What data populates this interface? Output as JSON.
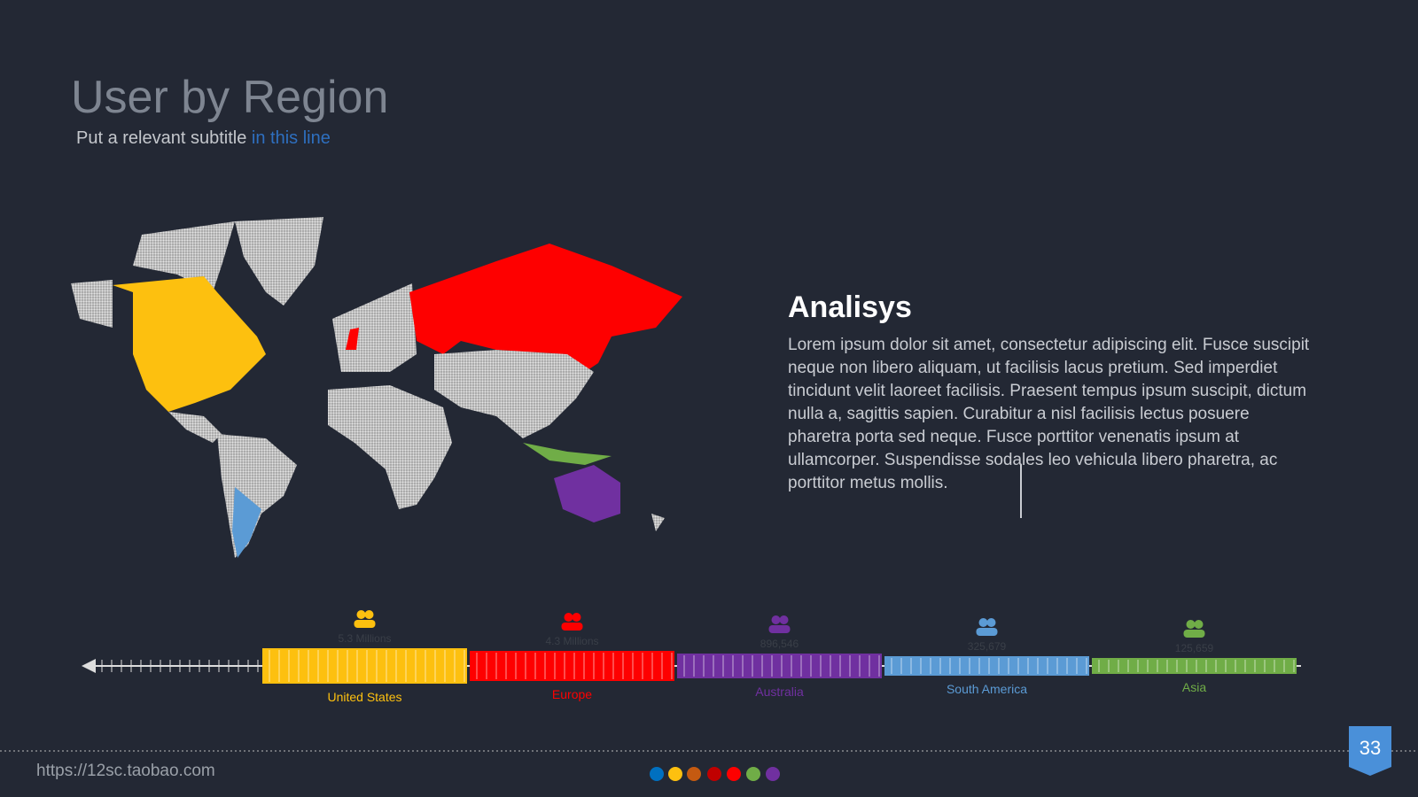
{
  "header": {
    "title": "User by Region",
    "subtitle": "Put a relevant subtitle ",
    "subtitle_highlight": "in this line"
  },
  "analysis": {
    "heading": "Analisys",
    "body": "Lorem ipsum dolor sit amet, consectetur adipiscing elit. Fusce suscipit neque non libero aliquam, ut facilisis lacus pretium. Sed imperdiet tincidunt velit laoreet facilisis. Praesent tempus ipsum suscipit, dictum nulla a, sagittis sapien. Curabitur a nisl facilisis lectus posuere pharetra porta sed neque. Fusce porttitor venenatis ipsum at ullamcorper. Suspendisse sodales leo vehicula libero pharetra, ac porttitor metus mollis."
  },
  "regions": [
    {
      "name": "United States",
      "value": "5.3 Millions",
      "color": "#fdc00f"
    },
    {
      "name": "Europe",
      "value": "4.3 Millions",
      "color": "#fe0000"
    },
    {
      "name": "Australia",
      "value": "896,546",
      "color": "#7030a0"
    },
    {
      "name": "South America",
      "value": "325,679",
      "color": "#5b9bd5"
    },
    {
      "name": "Asia",
      "value": "125,659",
      "color": "#70ad47"
    }
  ],
  "footer": {
    "url": "https://12sc.taobao.com",
    "page_number": "33"
  }
}
